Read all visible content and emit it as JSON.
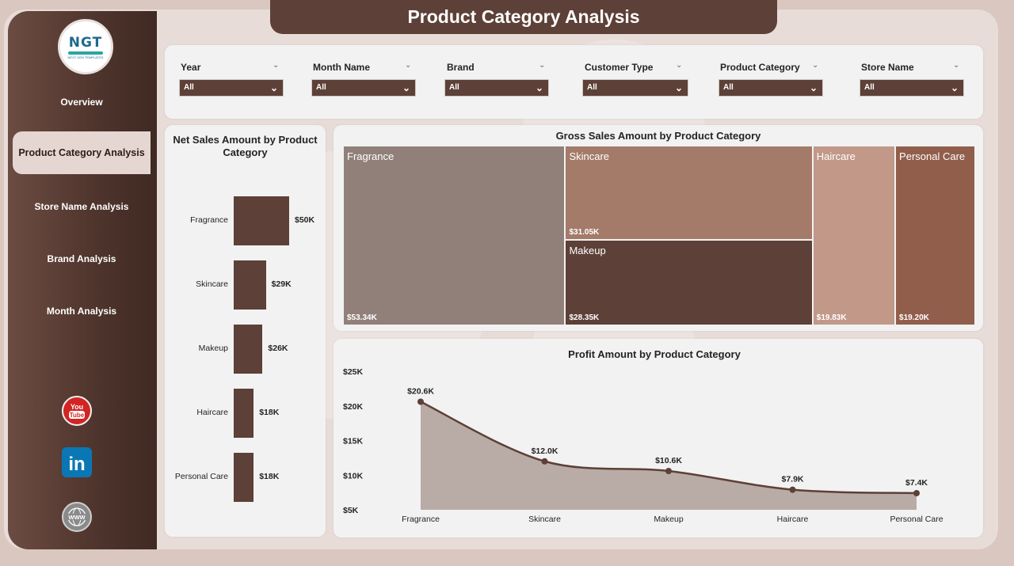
{
  "title": "Product Category Analysis",
  "logo": {
    "text": "NGT",
    "subtext": "NEXT GEN TEMPLATES"
  },
  "nav": [
    {
      "label": "Overview",
      "active": false
    },
    {
      "label": "Product Category Analysis",
      "active": true
    },
    {
      "label": "Store Name Analysis",
      "active": false
    },
    {
      "label": "Brand Analysis",
      "active": false
    },
    {
      "label": "Month Analysis",
      "active": false
    }
  ],
  "social": [
    {
      "icon": "youtube-icon",
      "text": "You Tube"
    },
    {
      "icon": "linkedin-icon",
      "text": "in"
    },
    {
      "icon": "website-icon",
      "text": "WWW"
    }
  ],
  "filters": [
    {
      "label": "Year",
      "value": "All"
    },
    {
      "label": "Month Name",
      "value": "All"
    },
    {
      "label": "Brand",
      "value": "All"
    },
    {
      "label": "Customer Type",
      "value": "All"
    },
    {
      "label": "Product Category",
      "value": "All"
    },
    {
      "label": "Store Name",
      "value": "All"
    }
  ],
  "colors": {
    "accent": "#5d4037",
    "panel": "#f2f2f2"
  },
  "chart_data": [
    {
      "type": "bar",
      "orientation": "vertical",
      "title": "Net Sales Amount by Product Category",
      "categories": [
        "Fragrance",
        "Skincare",
        "Makeup",
        "Haircare",
        "Personal Care"
      ],
      "values": [
        50,
        29,
        26,
        18,
        18
      ],
      "value_labels": [
        "$50K",
        "$29K",
        "$26K",
        "$18K",
        "$18K"
      ],
      "unit": "K",
      "color": "#5d4037"
    },
    {
      "type": "treemap",
      "title": "Gross Sales Amount by Product Category",
      "categories": [
        "Fragrance",
        "Skincare",
        "Makeup",
        "Haircare",
        "Personal Care"
      ],
      "values": [
        53.34,
        31.05,
        28.35,
        19.83,
        19.2
      ],
      "value_labels": [
        "$53.34K",
        "$31.05K",
        "$28.35K",
        "$19.83K",
        "$19.20K"
      ],
      "colors": [
        "#918079",
        "#a47a69",
        "#5d4037",
        "#c29888",
        "#915e4b"
      ]
    },
    {
      "type": "area",
      "title": "Profit Amount by Product Category",
      "categories": [
        "Fragrance",
        "Skincare",
        "Makeup",
        "Haircare",
        "Personal Care"
      ],
      "values": [
        20.6,
        12.0,
        10.6,
        7.9,
        7.4
      ],
      "value_labels": [
        "$20.6K",
        "$12.0K",
        "$10.6K",
        "$7.9K",
        "$7.4K"
      ],
      "ylim": [
        5,
        25
      ],
      "yticks": [
        "$5K",
        "$10K",
        "$15K",
        "$20K",
        "$25K"
      ],
      "ytick_values": [
        5,
        10,
        15,
        20,
        25
      ],
      "grid": false,
      "line_color": "#5d4037",
      "fill_color": "#b9aba6"
    }
  ]
}
